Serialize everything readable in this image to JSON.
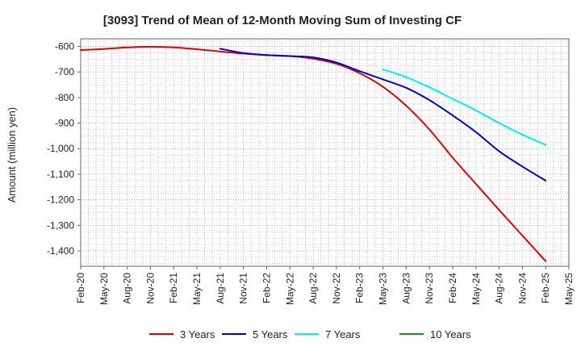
{
  "chart_data": {
    "type": "line",
    "title": "[3093]  Trend of Mean of 12-Month Moving Sum of Investing CF",
    "xlabel": "",
    "ylabel": "Amount (million yen)",
    "ylim": [
      -1460,
      -570
    ],
    "y_ticks": [
      -600,
      -700,
      -800,
      -900,
      -1000,
      -1100,
      -1200,
      -1300,
      -1400
    ],
    "y_tick_labels": [
      "-600",
      "-700",
      "-800",
      "-900",
      "-1,000",
      "-1,100",
      "-1,200",
      "-1,300",
      "-1,400"
    ],
    "x_categories": [
      "Feb-20",
      "May-20",
      "Aug-20",
      "Nov-20",
      "Feb-21",
      "May-21",
      "Aug-21",
      "Nov-21",
      "Feb-22",
      "May-22",
      "Aug-22",
      "Nov-22",
      "Feb-23",
      "May-23",
      "Aug-23",
      "Nov-23",
      "Feb-24",
      "May-24",
      "Aug-24",
      "Nov-24",
      "Feb-25",
      "May-25"
    ],
    "grid": true,
    "legend_position": "bottom",
    "series": [
      {
        "name": "3 Years",
        "color": "#dd0000",
        "values": [
          -614,
          -610,
          -604,
          -601,
          -604,
          -611,
          -620,
          -628,
          -634,
          -638,
          -648,
          -668,
          -705,
          -758,
          -832,
          -925,
          -1035,
          -1138,
          -1240,
          -1340,
          -1440,
          null
        ]
      },
      {
        "name": "5 Years",
        "color": "#0000cc",
        "values": [
          null,
          null,
          null,
          null,
          null,
          null,
          -609,
          -626,
          -634,
          -638,
          -643,
          -663,
          -697,
          -729,
          -762,
          -810,
          -870,
          -935,
          -1010,
          -1070,
          -1125,
          null
        ]
      },
      {
        "name": "7 Years",
        "color": "#00eeee",
        "values": [
          null,
          null,
          null,
          null,
          null,
          null,
          null,
          null,
          null,
          null,
          null,
          null,
          null,
          -690,
          -720,
          -760,
          -805,
          -850,
          -900,
          -945,
          -985,
          null
        ]
      },
      {
        "name": "10 Years",
        "color": "#228b22",
        "values": [
          null,
          null,
          null,
          null,
          null,
          null,
          null,
          null,
          null,
          null,
          null,
          null,
          null,
          null,
          null,
          null,
          null,
          null,
          null,
          null,
          null,
          null
        ]
      }
    ]
  }
}
